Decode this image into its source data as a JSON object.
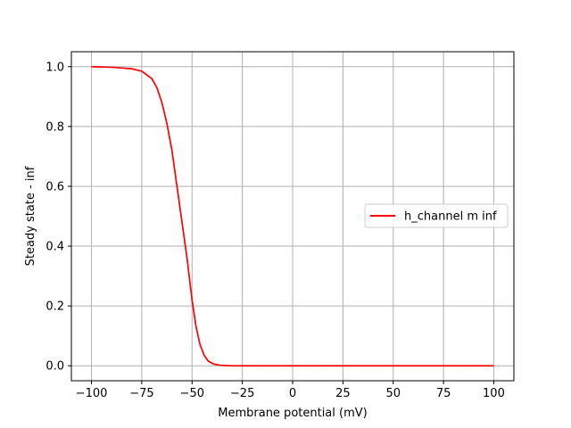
{
  "chart_data": {
    "type": "line",
    "title": "",
    "xlabel": "Membrane potential (mV)",
    "ylabel": "Steady state - inf",
    "xlim": [
      -110,
      110
    ],
    "ylim": [
      -0.05,
      1.05
    ],
    "xticks": [
      -100,
      -75,
      -50,
      -25,
      0,
      25,
      50,
      75,
      100
    ],
    "xtick_labels": [
      "−100",
      "−75",
      "−50",
      "−25",
      "0",
      "25",
      "50",
      "75",
      "100"
    ],
    "yticks": [
      0.0,
      0.2,
      0.4,
      0.6,
      0.8,
      1.0
    ],
    "ytick_labels": [
      "0.0",
      "0.2",
      "0.4",
      "0.6",
      "0.8",
      "1.0"
    ],
    "grid": true,
    "legend_position": "center-right",
    "series": [
      {
        "name": "h_channel m inf",
        "color": "#ff0000",
        "x": [
          -100,
          -90,
          -80,
          -75,
          -70,
          -67.5,
          -65,
          -62.5,
          -60,
          -57.5,
          -55,
          -52.5,
          -50,
          -48,
          -46,
          -44,
          -42,
          -40,
          -38,
          -36,
          -34,
          -32,
          -30,
          -25,
          -20,
          0,
          25,
          50,
          75,
          100
        ],
        "y": [
          1.0,
          0.998,
          0.993,
          0.985,
          0.96,
          0.93,
          0.88,
          0.81,
          0.72,
          0.6,
          0.48,
          0.36,
          0.22,
          0.13,
          0.07,
          0.035,
          0.016,
          0.008,
          0.004,
          0.002,
          0.001,
          0.0005,
          0.0,
          0.0,
          0.0,
          0.0,
          0.0,
          0.0,
          0.0,
          0.0
        ]
      }
    ]
  }
}
